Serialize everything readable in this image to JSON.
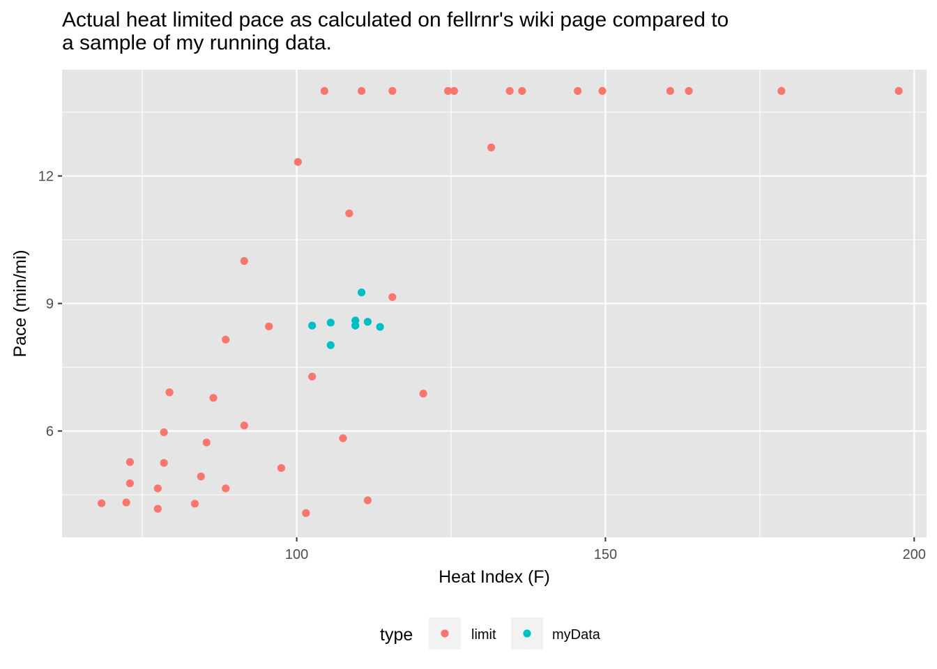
{
  "title_lines": [
    "Actual heat limited pace as calculated on fellrnr's wiki page compared to",
    "a sample of my running data."
  ],
  "colors": {
    "limit": "#F8766D",
    "myData": "#00BFC4",
    "panel": "#E5E5E5",
    "grid": "#FFFFFF"
  },
  "chart_data": {
    "type": "scatter",
    "xlabel": "Heat Index (F)",
    "ylabel": "Pace (min/mi)",
    "xlim": [
      62,
      202
    ],
    "ylim": [
      3.5,
      14.5
    ],
    "x_ticks": [
      100,
      150,
      200
    ],
    "y_ticks": [
      6,
      9,
      12
    ],
    "grid": true,
    "legend": {
      "title": "type",
      "position": "bottom"
    },
    "series": [
      {
        "name": "limit",
        "points": [
          [
            68.4,
            4.3
          ],
          [
            72.4,
            4.32
          ],
          [
            73,
            5.27
          ],
          [
            73,
            4.77
          ],
          [
            77.5,
            4.17
          ],
          [
            77.5,
            4.65
          ],
          [
            78.5,
            5.97
          ],
          [
            78.5,
            5.25
          ],
          [
            79.4,
            6.91
          ],
          [
            83.5,
            4.29
          ],
          [
            84.5,
            4.93
          ],
          [
            85.4,
            5.73
          ],
          [
            86.5,
            6.78
          ],
          [
            88.5,
            8.15
          ],
          [
            88.5,
            4.65
          ],
          [
            91.5,
            10.0
          ],
          [
            91.5,
            6.13
          ],
          [
            95.5,
            8.46
          ],
          [
            97.5,
            5.13
          ],
          [
            100.2,
            12.33
          ],
          [
            101.5,
            4.07
          ],
          [
            102.5,
            7.28
          ],
          [
            104.5,
            14.0
          ],
          [
            107.5,
            5.83
          ],
          [
            108.5,
            11.12
          ],
          [
            110.5,
            14.0
          ],
          [
            111.5,
            4.37
          ],
          [
            115.5,
            14.0
          ],
          [
            115.5,
            9.15
          ],
          [
            120.5,
            6.88
          ],
          [
            124.5,
            14.0
          ],
          [
            125.5,
            14.0
          ],
          [
            131.5,
            12.67
          ],
          [
            134.5,
            14.0
          ],
          [
            136.5,
            14.0
          ],
          [
            145.5,
            14.0
          ],
          [
            149.5,
            14.0
          ],
          [
            160.5,
            14.0
          ],
          [
            163.5,
            14.0
          ],
          [
            178.5,
            14.0
          ],
          [
            197.5,
            14.0
          ]
        ]
      },
      {
        "name": "myData",
        "points": [
          [
            102.5,
            8.48
          ],
          [
            105.5,
            8.55
          ],
          [
            105.5,
            8.02
          ],
          [
            109.5,
            8.6
          ],
          [
            109.5,
            8.48
          ],
          [
            110.5,
            9.26
          ],
          [
            111.5,
            8.57
          ],
          [
            113.5,
            8.45
          ]
        ]
      }
    ]
  }
}
